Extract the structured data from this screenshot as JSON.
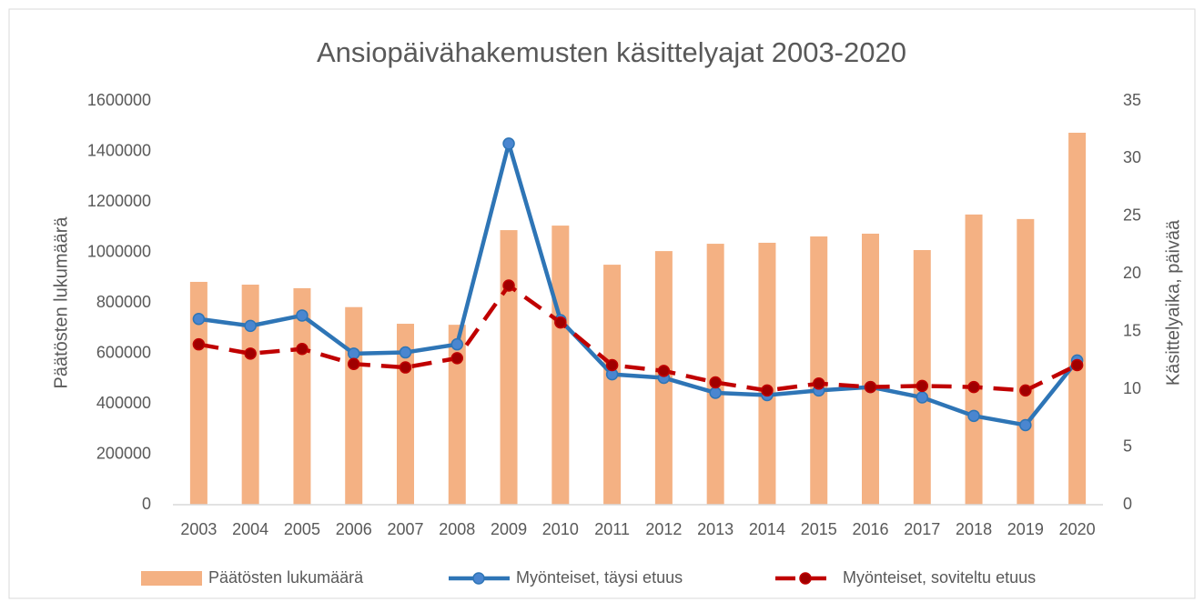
{
  "chart_data": {
    "type": "bar_line",
    "title": "Ansiopäivähakemusten käsittelyajat 2003-2020",
    "ylabel": "Päätösten lukumäärä",
    "y2label": "Käsittelyaika, päivää",
    "categories": [
      "2003",
      "2004",
      "2005",
      "2006",
      "2007",
      "2008",
      "2009",
      "2010",
      "2011",
      "2012",
      "2013",
      "2014",
      "2015",
      "2016",
      "2017",
      "2018",
      "2019",
      "2020"
    ],
    "series": [
      {
        "name": "Päätösten lukumäärä",
        "type": "bar",
        "color": "#f4b183",
        "axis": "y",
        "values": [
          883000,
          872000,
          858000,
          783000,
          717000,
          713000,
          1088000,
          1106000,
          951000,
          1005000,
          1034000,
          1038000,
          1063000,
          1074000,
          1009000,
          1150000,
          1132000,
          1474000
        ]
      },
      {
        "name": "Myönteiset, täysi etuus",
        "type": "line",
        "color": "#2e75b6",
        "marker_color": "#4a86d0",
        "axis": "y2",
        "values": [
          16.1,
          15.5,
          16.4,
          13.1,
          13.2,
          13.9,
          31.3,
          16.0,
          11.3,
          11.0,
          9.7,
          9.5,
          9.9,
          10.2,
          9.3,
          7.7,
          6.9,
          12.5
        ]
      },
      {
        "name": "Myönteiset, soviteltu etuus",
        "type": "line",
        "dashed": true,
        "color": "#c00000",
        "marker_color": "#a00000",
        "axis": "y2",
        "values": [
          13.9,
          13.1,
          13.5,
          12.2,
          11.9,
          12.7,
          19.0,
          15.8,
          12.1,
          11.6,
          10.6,
          9.9,
          10.5,
          10.2,
          10.3,
          10.2,
          9.9,
          12.1
        ]
      }
    ],
    "ylim": [
      0,
      1600000
    ],
    "yticks": [
      0,
      200000,
      400000,
      600000,
      800000,
      1000000,
      1200000,
      1400000,
      1600000
    ],
    "y2lim": [
      0,
      35
    ],
    "y2ticks": [
      0,
      5,
      10,
      15,
      20,
      25,
      30,
      35
    ],
    "grid": false,
    "legend": "bottom"
  }
}
